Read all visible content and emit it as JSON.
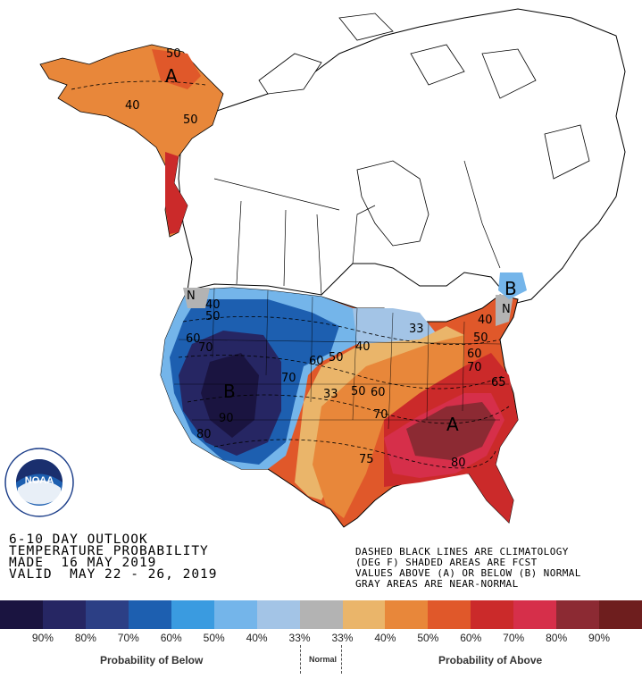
{
  "title": {
    "line1": "6-10 DAY OUTLOOK",
    "line2": "TEMPERATURE PROBABILITY",
    "line3": "MADE  16 MAY 2019",
    "line4": "VALID  MAY 22 - 26, 2019"
  },
  "notes": {
    "line1": "DASHED BLACK LINES ARE CLIMATOLOGY",
    "line2": "(DEG F) SHADED AREAS ARE FCST",
    "line3": "VALUES ABOVE (A) OR BELOW (B) NORMAL",
    "line4": "GRAY AREAS ARE NEAR-NORMAL"
  },
  "logo_text": "NOAA",
  "logo_ring_text": "NATIONAL OCEANIC AND ATMOSPHERIC ADMINISTRATION",
  "logo_ring_text2": "U.S. DEPARTMENT OF COMMERCE",
  "map_labels": {
    "a_alaska": "A",
    "a_southeast": "A",
    "b_west": "B",
    "b_maine": "B",
    "n_northwest": "N",
    "n_midatlantic": "N",
    "c40": "40",
    "c50": "50",
    "c60": "60",
    "c70": "70",
    "c80": "80",
    "c90": "90",
    "c33": "33",
    "c75": "75",
    "c65": "65"
  },
  "legend": {
    "colors": [
      "#1a1440",
      "#262663",
      "#2c3f85",
      "#1d5fb0",
      "#3a9be0",
      "#74b5ea",
      "#a3c4e6",
      "#b3b3b3",
      "#eab56a",
      "#e8873a",
      "#e0582a",
      "#cb2a2a",
      "#d62f4a",
      "#8c2a33",
      "#6e1e1e"
    ],
    "percents": [
      "90%",
      "80%",
      "70%",
      "60%",
      "50%",
      "40%",
      "33%",
      "33%",
      "40%",
      "50%",
      "60%",
      "70%",
      "80%",
      "90%"
    ],
    "below_caption": "Probability of Below",
    "normal_caption": "Normal",
    "above_caption": "Probability of Above"
  }
}
